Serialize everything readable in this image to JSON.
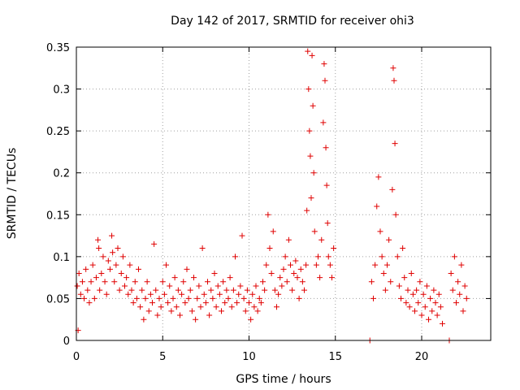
{
  "chart_data": {
    "type": "scatter",
    "title": "Day 142 of 2017, SRMTID for receiver ohi3",
    "xlabel": "GPS time / hours",
    "ylabel": "SRMTID / TECUs",
    "xlim": [
      0,
      24
    ],
    "ylim": [
      0,
      0.35
    ],
    "xticks": [
      0,
      5,
      10,
      15,
      20
    ],
    "yticks": [
      0,
      0.05,
      0.1,
      0.15,
      0.2,
      0.25,
      0.3,
      0.35
    ],
    "xtick_labels": [
      "0",
      "5",
      "10",
      "15",
      "20"
    ],
    "ytick_labels": [
      "0",
      "0.05",
      "0.1",
      "0.15",
      "0.2",
      "0.25",
      "0.3",
      "0.35"
    ],
    "grid": true,
    "marker": "+",
    "series_color": "#e00000",
    "series": [
      {
        "name": "SRMTID",
        "points": [
          [
            0.05,
            0.065
          ],
          [
            0.1,
            0.012
          ],
          [
            0.15,
            0.08
          ],
          [
            0.25,
            0.055
          ],
          [
            0.35,
            0.07
          ],
          [
            0.45,
            0.05
          ],
          [
            0.55,
            0.085
          ],
          [
            0.65,
            0.06
          ],
          [
            0.75,
            0.045
          ],
          [
            0.85,
            0.07
          ],
          [
            0.95,
            0.09
          ],
          [
            1.05,
            0.05
          ],
          [
            1.15,
            0.075
          ],
          [
            1.25,
            0.12
          ],
          [
            1.3,
            0.11
          ],
          [
            1.35,
            0.06
          ],
          [
            1.45,
            0.08
          ],
          [
            1.55,
            0.1
          ],
          [
            1.65,
            0.07
          ],
          [
            1.75,
            0.055
          ],
          [
            1.85,
            0.095
          ],
          [
            1.95,
            0.085
          ],
          [
            2.05,
            0.125
          ],
          [
            2.1,
            0.105
          ],
          [
            2.2,
            0.07
          ],
          [
            2.3,
            0.09
          ],
          [
            2.4,
            0.11
          ],
          [
            2.5,
            0.06
          ],
          [
            2.6,
            0.08
          ],
          [
            2.7,
            0.1
          ],
          [
            2.8,
            0.065
          ],
          [
            2.9,
            0.075
          ],
          [
            3.0,
            0.055
          ],
          [
            3.1,
            0.09
          ],
          [
            3.2,
            0.06
          ],
          [
            3.3,
            0.045
          ],
          [
            3.4,
            0.07
          ],
          [
            3.5,
            0.05
          ],
          [
            3.6,
            0.085
          ],
          [
            3.7,
            0.04
          ],
          [
            3.8,
            0.06
          ],
          [
            3.9,
            0.025
          ],
          [
            4.0,
            0.05
          ],
          [
            4.1,
            0.07
          ],
          [
            4.2,
            0.035
          ],
          [
            4.3,
            0.055
          ],
          [
            4.4,
            0.045
          ],
          [
            4.5,
            0.115
          ],
          [
            4.6,
            0.06
          ],
          [
            4.7,
            0.03
          ],
          [
            4.8,
            0.05
          ],
          [
            4.9,
            0.04
          ],
          [
            5.0,
            0.07
          ],
          [
            5.1,
            0.055
          ],
          [
            5.2,
            0.09
          ],
          [
            5.3,
            0.045
          ],
          [
            5.4,
            0.065
          ],
          [
            5.5,
            0.035
          ],
          [
            5.6,
            0.05
          ],
          [
            5.7,
            0.075
          ],
          [
            5.8,
            0.04
          ],
          [
            5.9,
            0.06
          ],
          [
            6.0,
            0.03
          ],
          [
            6.1,
            0.055
          ],
          [
            6.2,
            0.07
          ],
          [
            6.3,
            0.045
          ],
          [
            6.4,
            0.085
          ],
          [
            6.5,
            0.05
          ],
          [
            6.6,
            0.06
          ],
          [
            6.7,
            0.035
          ],
          [
            6.8,
            0.075
          ],
          [
            6.9,
            0.025
          ],
          [
            7.0,
            0.05
          ],
          [
            7.1,
            0.065
          ],
          [
            7.2,
            0.04
          ],
          [
            7.3,
            0.11
          ],
          [
            7.4,
            0.055
          ],
          [
            7.5,
            0.045
          ],
          [
            7.6,
            0.07
          ],
          [
            7.7,
            0.03
          ],
          [
            7.8,
            0.06
          ],
          [
            7.9,
            0.05
          ],
          [
            8.0,
            0.08
          ],
          [
            8.1,
            0.04
          ],
          [
            8.2,
            0.065
          ],
          [
            8.3,
            0.055
          ],
          [
            8.4,
            0.035
          ],
          [
            8.5,
            0.07
          ],
          [
            8.6,
            0.045
          ],
          [
            8.7,
            0.06
          ],
          [
            8.8,
            0.05
          ],
          [
            8.9,
            0.075
          ],
          [
            9.0,
            0.04
          ],
          [
            9.1,
            0.06
          ],
          [
            9.2,
            0.1
          ],
          [
            9.3,
            0.045
          ],
          [
            9.4,
            0.055
          ],
          [
            9.5,
            0.065
          ],
          [
            9.6,
            0.125
          ],
          [
            9.7,
            0.05
          ],
          [
            9.8,
            0.035
          ],
          [
            9.9,
            0.06
          ],
          [
            10.0,
            0.045
          ],
          [
            10.1,
            0.025
          ],
          [
            10.2,
            0.055
          ],
          [
            10.3,
            0.04
          ],
          [
            10.4,
            0.065
          ],
          [
            10.5,
            0.035
          ],
          [
            10.6,
            0.05
          ],
          [
            10.7,
            0.045
          ],
          [
            10.8,
            0.07
          ],
          [
            10.9,
            0.06
          ],
          [
            11.0,
            0.09
          ],
          [
            11.1,
            0.15
          ],
          [
            11.2,
            0.11
          ],
          [
            11.3,
            0.08
          ],
          [
            11.4,
            0.13
          ],
          [
            11.5,
            0.06
          ],
          [
            11.6,
            0.04
          ],
          [
            11.7,
            0.055
          ],
          [
            11.8,
            0.075
          ],
          [
            11.9,
            0.065
          ],
          [
            12.0,
            0.085
          ],
          [
            12.1,
            0.1
          ],
          [
            12.2,
            0.07
          ],
          [
            12.3,
            0.12
          ],
          [
            12.4,
            0.09
          ],
          [
            12.5,
            0.06
          ],
          [
            12.6,
            0.08
          ],
          [
            12.7,
            0.095
          ],
          [
            12.8,
            0.075
          ],
          [
            12.9,
            0.05
          ],
          [
            13.0,
            0.085
          ],
          [
            13.1,
            0.07
          ],
          [
            13.2,
            0.06
          ],
          [
            13.3,
            0.09
          ],
          [
            13.35,
            0.155
          ],
          [
            13.4,
            0.345
          ],
          [
            13.45,
            0.3
          ],
          [
            13.5,
            0.25
          ],
          [
            13.55,
            0.22
          ],
          [
            13.6,
            0.17
          ],
          [
            13.65,
            0.34
          ],
          [
            13.7,
            0.28
          ],
          [
            13.75,
            0.2
          ],
          [
            13.8,
            0.13
          ],
          [
            13.9,
            0.09
          ],
          [
            14.0,
            0.1
          ],
          [
            14.1,
            0.075
          ],
          [
            14.2,
            0.12
          ],
          [
            14.3,
            0.26
          ],
          [
            14.35,
            0.33
          ],
          [
            14.4,
            0.31
          ],
          [
            14.45,
            0.23
          ],
          [
            14.5,
            0.185
          ],
          [
            14.55,
            0.14
          ],
          [
            14.6,
            0.1
          ],
          [
            14.7,
            0.09
          ],
          [
            14.8,
            0.075
          ],
          [
            14.9,
            0.11
          ],
          [
            17.0,
            0.0
          ],
          [
            17.1,
            0.07
          ],
          [
            17.2,
            0.05
          ],
          [
            17.3,
            0.09
          ],
          [
            17.4,
            0.16
          ],
          [
            17.5,
            0.195
          ],
          [
            17.6,
            0.13
          ],
          [
            17.7,
            0.1
          ],
          [
            17.8,
            0.08
          ],
          [
            17.9,
            0.06
          ],
          [
            18.0,
            0.09
          ],
          [
            18.1,
            0.12
          ],
          [
            18.2,
            0.07
          ],
          [
            18.3,
            0.18
          ],
          [
            18.35,
            0.325
          ],
          [
            18.4,
            0.31
          ],
          [
            18.45,
            0.235
          ],
          [
            18.5,
            0.15
          ],
          [
            18.6,
            0.1
          ],
          [
            18.7,
            0.065
          ],
          [
            18.8,
            0.05
          ],
          [
            18.9,
            0.11
          ],
          [
            19.0,
            0.075
          ],
          [
            19.1,
            0.045
          ],
          [
            19.2,
            0.06
          ],
          [
            19.3,
            0.04
          ],
          [
            19.4,
            0.08
          ],
          [
            19.5,
            0.055
          ],
          [
            19.6,
            0.035
          ],
          [
            19.7,
            0.06
          ],
          [
            19.8,
            0.045
          ],
          [
            19.9,
            0.07
          ],
          [
            20.0,
            0.03
          ],
          [
            20.1,
            0.055
          ],
          [
            20.2,
            0.04
          ],
          [
            20.3,
            0.065
          ],
          [
            20.4,
            0.025
          ],
          [
            20.5,
            0.05
          ],
          [
            20.6,
            0.035
          ],
          [
            20.7,
            0.06
          ],
          [
            20.8,
            0.045
          ],
          [
            20.9,
            0.03
          ],
          [
            21.0,
            0.055
          ],
          [
            21.1,
            0.04
          ],
          [
            21.2,
            0.02
          ],
          [
            21.6,
            0.0
          ],
          [
            21.7,
            0.08
          ],
          [
            21.8,
            0.06
          ],
          [
            21.9,
            0.1
          ],
          [
            22.0,
            0.045
          ],
          [
            22.1,
            0.07
          ],
          [
            22.2,
            0.055
          ],
          [
            22.3,
            0.09
          ],
          [
            22.4,
            0.035
          ],
          [
            22.5,
            0.065
          ],
          [
            22.6,
            0.05
          ]
        ]
      }
    ]
  }
}
